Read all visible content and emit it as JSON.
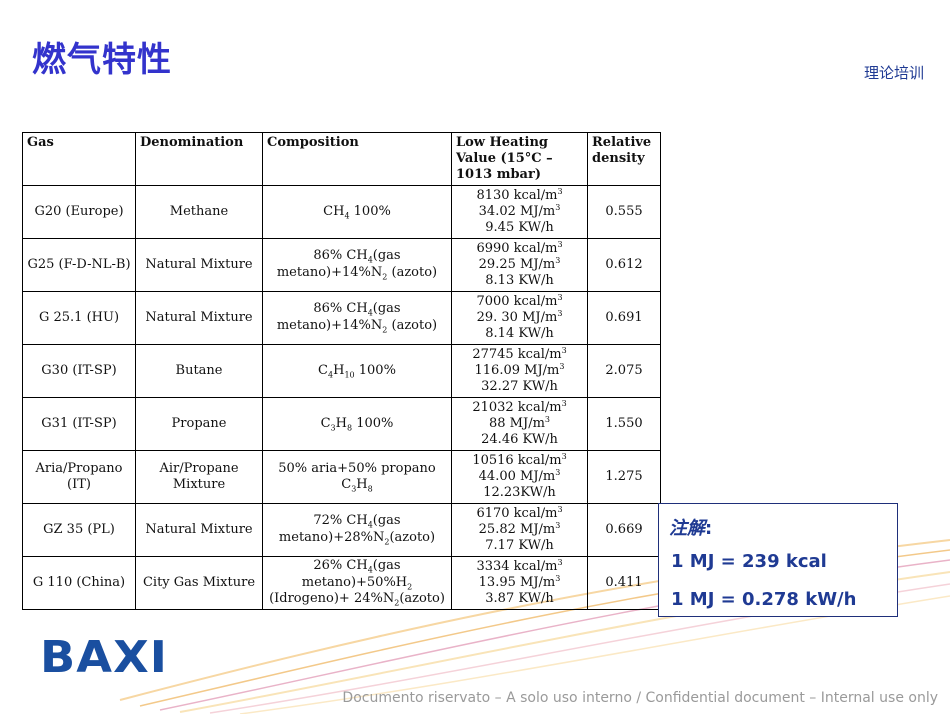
{
  "header": {
    "title": "燃气特性",
    "subtitle": "理论培训"
  },
  "table": {
    "headers": [
      "Gas",
      "Denomination",
      "Composition",
      "Low Heating Value (15°C – 1013 mbar)",
      "Relative density"
    ],
    "rows": [
      {
        "gas": "G20 (Europe)",
        "denomination": "Methane",
        "composition": "CH4 100%",
        "kcal": "8130 kcal/m3",
        "mj": "34.02 MJ/m3",
        "kwh": "9.45 KW/h",
        "density": "0.555"
      },
      {
        "gas": "G25 (F-D-NL-B)",
        "denomination": "Natural Mixture",
        "composition": "86% CH4(gas metano)+14%N2 (azoto)",
        "kcal": "6990 kcal/m3",
        "mj": "29.25 MJ/m3",
        "kwh": "8.13 KW/h",
        "density": "0.612"
      },
      {
        "gas": "G 25.1 (HU)",
        "denomination": "Natural Mixture",
        "composition": "86% CH4(gas metano)+14%N2 (azoto)",
        "kcal": "7000 kcal/m3",
        "mj": "29. 30 MJ/m3",
        "kwh": "8.14 KW/h",
        "density": "0.691"
      },
      {
        "gas": "G30 (IT-SP)",
        "denomination": "Butane",
        "composition": "C4H10 100%",
        "kcal": "27745 kcal/m3",
        "mj": "116.09 MJ/m3",
        "kwh": "32.27 KW/h",
        "density": "2.075"
      },
      {
        "gas": "G31 (IT-SP)",
        "denomination": "Propane",
        "composition": "C3H8 100%",
        "kcal": "21032 kcal/m3",
        "mj": "88 MJ/m3",
        "kwh": "24.46 KW/h",
        "density": "1.550"
      },
      {
        "gas": "Aria/Propano (IT)",
        "denomination": "Air/Propane Mixture",
        "composition": "50% aria+50% propano C3H8",
        "kcal": "10516 kcal/m3",
        "mj": "44.00 MJ/m3",
        "kwh": "12.23KW/h",
        "density": "1.275"
      },
      {
        "gas": "GZ 35 (PL)",
        "denomination": "Natural Mixture",
        "composition": "72% CH4(gas metano)+28%N2(azoto)",
        "kcal": "6170 kcal/m3",
        "mj": "25.82 MJ/m3",
        "kwh": "7.17 KW/h",
        "density": "0.669"
      },
      {
        "gas": "G 110 (China)",
        "denomination": "City Gas Mixture",
        "composition": "26% CH4(gas metano)+50%H2 (Idrogeno)+ 24%N2(azoto)",
        "kcal": "3334 kcal/m3",
        "mj": "13.95 MJ/m3",
        "kwh": "3.87 KW/h",
        "density": "0.411"
      }
    ]
  },
  "note": {
    "title": "注解",
    "colon": ":",
    "line1": "1 MJ = 239 kcal",
    "line2": "1 MJ = 0.278 kW/h"
  },
  "logo": "BAXI",
  "footer": "Documento riservato – A solo uso interno / Confidential document – Internal use only",
  "colors": {
    "title": "#3333cc",
    "note_text": "#1f3a93",
    "logo": "#1a4fa0",
    "footer": "#9a9a9a"
  }
}
